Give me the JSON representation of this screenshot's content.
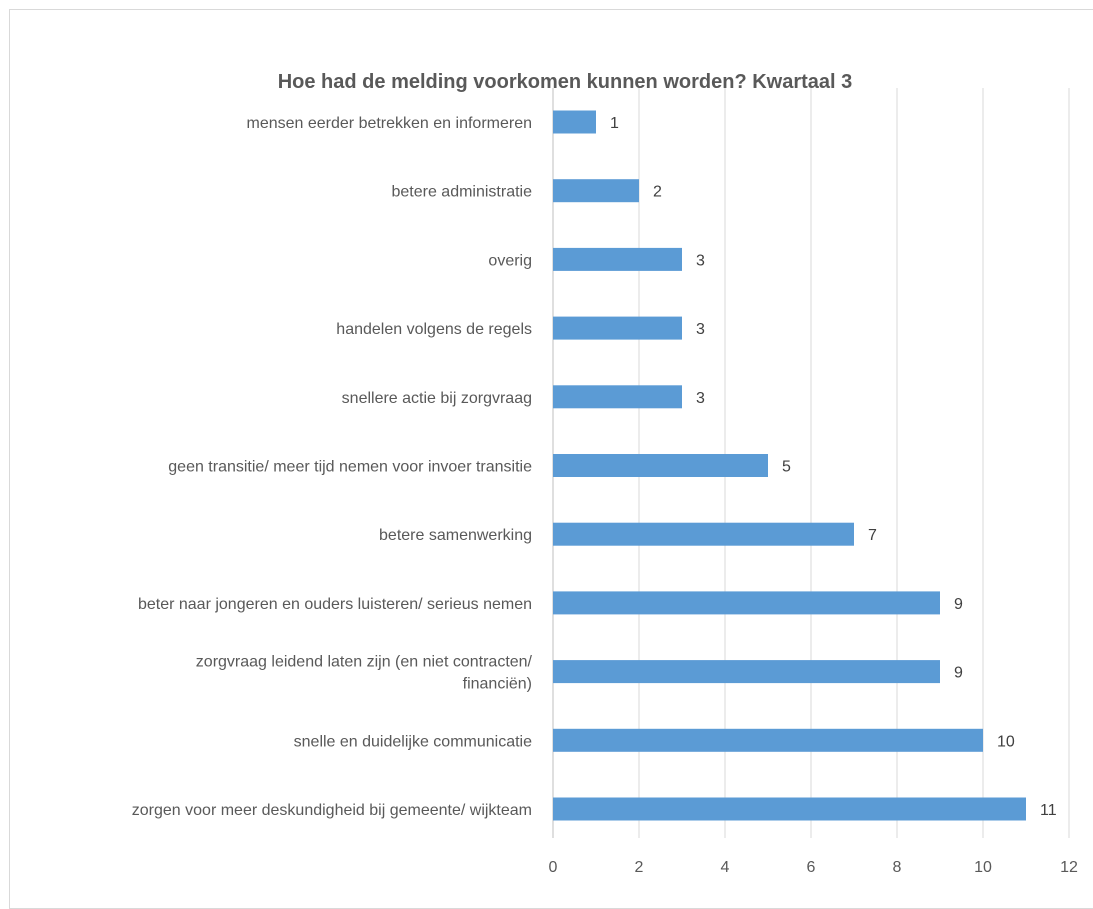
{
  "chart_data": {
    "type": "bar",
    "orientation": "horizontal",
    "title": "Hoe had de melding voorkomen kunnen worden? Kwartaal 3",
    "categories": [
      [
        "mensen eerder betrekken en informeren"
      ],
      [
        "betere administratie"
      ],
      [
        "overig"
      ],
      [
        "handelen volgens de regels"
      ],
      [
        "snellere actie bij zorgvraag"
      ],
      [
        "geen transitie/ meer tijd nemen voor invoer transitie"
      ],
      [
        "betere samenwerking"
      ],
      [
        "beter naar jongeren en ouders luisteren/ serieus nemen"
      ],
      [
        "zorgvraag leidend laten zijn (en niet contracten/",
        "financiën)"
      ],
      [
        "snelle en duidelijke communicatie"
      ],
      [
        "zorgen voor meer deskundigheid bij gemeente/ wijkteam"
      ]
    ],
    "values": [
      1,
      2,
      3,
      3,
      3,
      5,
      7,
      9,
      9,
      10,
      11
    ],
    "xlim": [
      0,
      12
    ],
    "xticks": [
      "0",
      "2",
      "4",
      "6",
      "8",
      "10",
      "12"
    ],
    "grid": true,
    "data_labels": true,
    "bar_color": "#5b9bd5",
    "grid_color": "#d9d9d9",
    "text_color": "#595959"
  }
}
